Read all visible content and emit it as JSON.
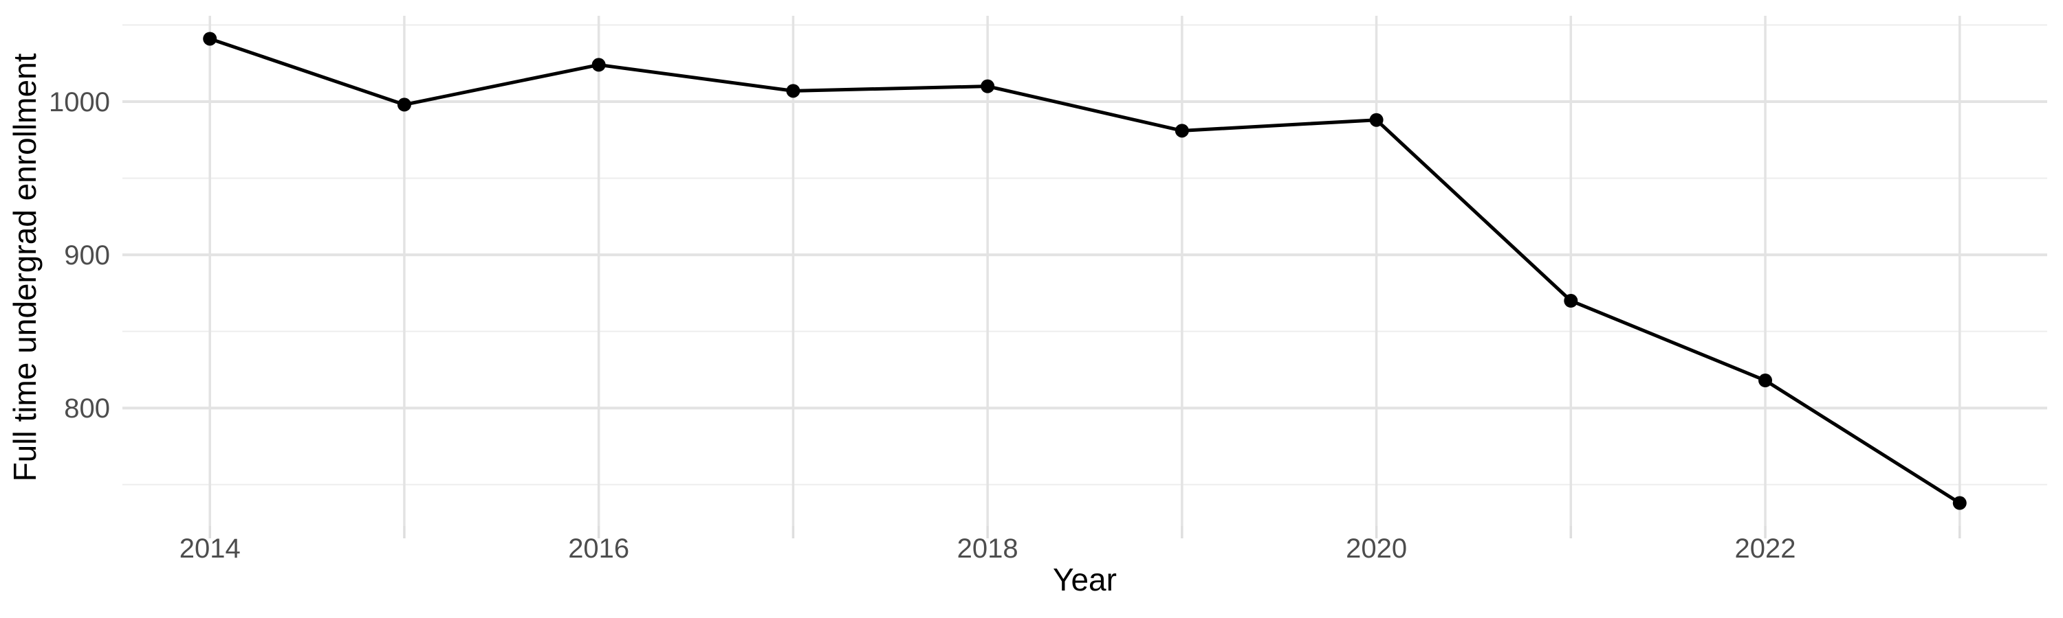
{
  "figure": {
    "background": "#ffffff"
  },
  "chart_data": {
    "type": "line",
    "title": "",
    "xlabel": "Year",
    "ylabel": "Full time undergrad enrollment",
    "x": [
      2014,
      2015,
      2016,
      2017,
      2018,
      2019,
      2020,
      2021,
      2022,
      2023
    ],
    "values": [
      1041,
      998,
      1024,
      1007,
      1010,
      981,
      988,
      870,
      818,
      738
    ],
    "xlim": [
      2013.55,
      2023.45
    ],
    "ylim": [
      723,
      1056
    ],
    "x_ticks": [
      2014,
      2015,
      2016,
      2017,
      2018,
      2019,
      2020,
      2021,
      2022,
      2023
    ],
    "x_tick_labels": [
      "2014",
      "",
      "2016",
      "",
      "2018",
      "",
      "2020",
      "",
      "2022",
      ""
    ],
    "y_major_ticks": [
      800,
      900,
      1000
    ],
    "y_major_tick_labels": [
      "800",
      "900",
      "1000"
    ],
    "y_minor_ticks": [
      750,
      850,
      950,
      1050
    ],
    "grid": true,
    "legend": "none",
    "style": {
      "line_color": "#000000",
      "line_width": 5,
      "point_color": "#000000",
      "point_radius": 10,
      "grid_major_color": "#e3e3e3",
      "grid_minor_color": "#ededed",
      "grid_x_color": "#e3e3e3",
      "tick_mark_color": "#dedede",
      "axis_text_color": "#4d4d4d",
      "axis_title_color": "#000000"
    }
  }
}
